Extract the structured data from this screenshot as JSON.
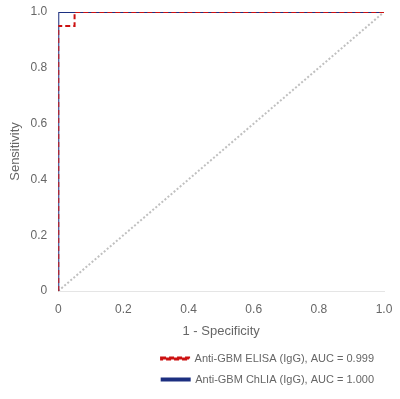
{
  "chart_data": {
    "type": "line",
    "xlabel": "1 - Specificity",
    "ylabel": "Sensitivity",
    "xlim": [
      0,
      1.0
    ],
    "ylim": [
      0,
      1.0
    ],
    "xticks": [
      0,
      0.2,
      0.4,
      0.6,
      0.8,
      {
        "value": 1.0,
        "label": "1.0"
      }
    ],
    "yticks": [
      0,
      0.2,
      0.4,
      0.6,
      0.8,
      {
        "value": 1.0,
        "label": "1.0"
      }
    ],
    "grid": false,
    "legend": "lower right",
    "series": [
      {
        "color": "#c0c0c0",
        "line_style": "dotted",
        "x": [
          0,
          1
        ],
        "values": [
          0,
          1
        ]
      },
      {
        "name": "Anti-GBM ChLIA (IgG), AUC = 1.000",
        "color": "#1c2f80",
        "line_style": "solid",
        "x": [
          0.0,
          0.0,
          0.0,
          1.0
        ],
        "values": [
          0.0,
          0.95,
          1.0,
          1.0
        ]
      },
      {
        "name": "Anti-GBM ELISA (IgG), AUC = 0.999",
        "color": "#cc1111",
        "line_style": "dashed",
        "x": [
          0.0,
          0.0,
          0.05,
          0.05,
          1.0
        ],
        "values": [
          0.0,
          0.95,
          0.95,
          1.0,
          1.0
        ]
      }
    ]
  }
}
